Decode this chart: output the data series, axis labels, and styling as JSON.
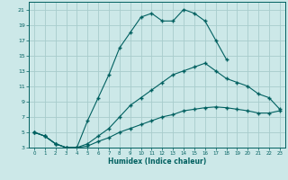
{
  "xlabel": "Humidex (Indice chaleur)",
  "bg_color": "#cce8e8",
  "grid_color": "#a8cccc",
  "line_color": "#006060",
  "xlim": [
    -0.5,
    23.5
  ],
  "ylim": [
    3,
    22
  ],
  "xticks": [
    0,
    1,
    2,
    3,
    4,
    5,
    6,
    7,
    8,
    9,
    10,
    11,
    12,
    13,
    14,
    15,
    16,
    17,
    18,
    19,
    20,
    21,
    22,
    23
  ],
  "yticks": [
    3,
    5,
    7,
    9,
    11,
    13,
    15,
    17,
    19,
    21
  ],
  "curve1_x": [
    0,
    1,
    2,
    3,
    4,
    5,
    6,
    7,
    8,
    9,
    10,
    11,
    12,
    13,
    14,
    15,
    16,
    17,
    18
  ],
  "curve1_y": [
    5,
    4.5,
    3.5,
    3,
    3,
    6.5,
    9.5,
    12.5,
    16,
    18,
    20,
    20.5,
    19.5,
    19.5,
    21,
    20.5,
    19.5,
    17,
    14.5
  ],
  "curve2_x": [
    0,
    1,
    2,
    3,
    4,
    5,
    6,
    7,
    8,
    9,
    10,
    11,
    12,
    13,
    14,
    15,
    16,
    17,
    18,
    19,
    20,
    21,
    22,
    23
  ],
  "curve2_y": [
    5,
    4.5,
    3.5,
    3,
    3,
    3.5,
    4.5,
    5.5,
    7,
    8.5,
    9.5,
    10.5,
    11.5,
    12.5,
    13,
    13.5,
    14,
    13,
    12,
    11.5,
    11,
    10,
    9.5,
    8
  ],
  "curve3_x": [
    0,
    1,
    2,
    3,
    4,
    5,
    6,
    7,
    8,
    9,
    10,
    11,
    12,
    13,
    14,
    15,
    16,
    17,
    18,
    19,
    20,
    21,
    22,
    23
  ],
  "curve3_y": [
    5,
    4.5,
    3.5,
    3,
    3,
    3.2,
    3.8,
    4.3,
    5,
    5.5,
    6,
    6.5,
    7,
    7.3,
    7.8,
    8,
    8.2,
    8.3,
    8.2,
    8,
    7.8,
    7.5,
    7.5,
    7.8
  ]
}
